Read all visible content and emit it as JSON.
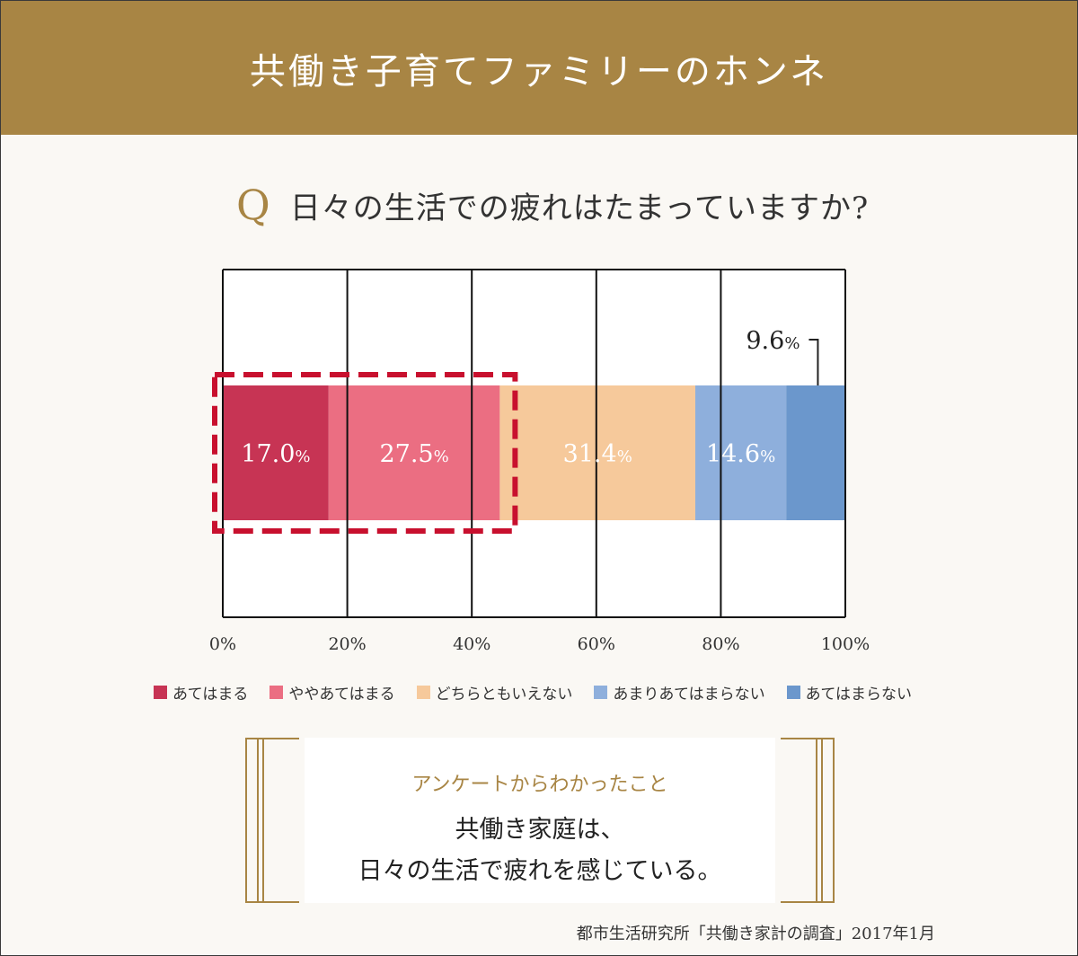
{
  "header": {
    "title": "共働き子育てファミリーのホンネ"
  },
  "question": {
    "mark": "Q",
    "text": "日々の生活での疲れはたまっていますか?"
  },
  "chart_data": {
    "type": "bar",
    "orientation": "horizontal-stacked",
    "xlim": [
      0,
      100
    ],
    "x_ticks": [
      "0%",
      "20%",
      "40%",
      "60%",
      "80%",
      "100%"
    ],
    "grid": true,
    "legend_placement": "bottom",
    "series": [
      {
        "name": "あてはまる",
        "value": 17.0,
        "label": "17.0",
        "color": "#c73454"
      },
      {
        "name": "ややあてはまる",
        "value": 27.5,
        "label": "27.5",
        "color": "#eb6e82"
      },
      {
        "name": "どちらともいえない",
        "value": 31.4,
        "label": "31.4",
        "color": "#f6c99b"
      },
      {
        "name": "あまりあてはまらない",
        "value": 14.6,
        "label": "14.6",
        "color": "#8eafdc"
      },
      {
        "name": "あてはまらない",
        "value": 9.6,
        "label": "9.6",
        "color": "#6b97cc"
      }
    ],
    "unit": "%",
    "highlight": {
      "from": 0,
      "to": 44.5,
      "color": "#c8102e"
    }
  },
  "finding": {
    "label": "アンケートからわかったこと",
    "line1": "共働き家庭は、",
    "line2": "日々の生活で疲れを感じている。"
  },
  "source": "都市生活研究所「共働き家計の調査」2017年1月",
  "colors": {
    "brand": "#a88544"
  }
}
